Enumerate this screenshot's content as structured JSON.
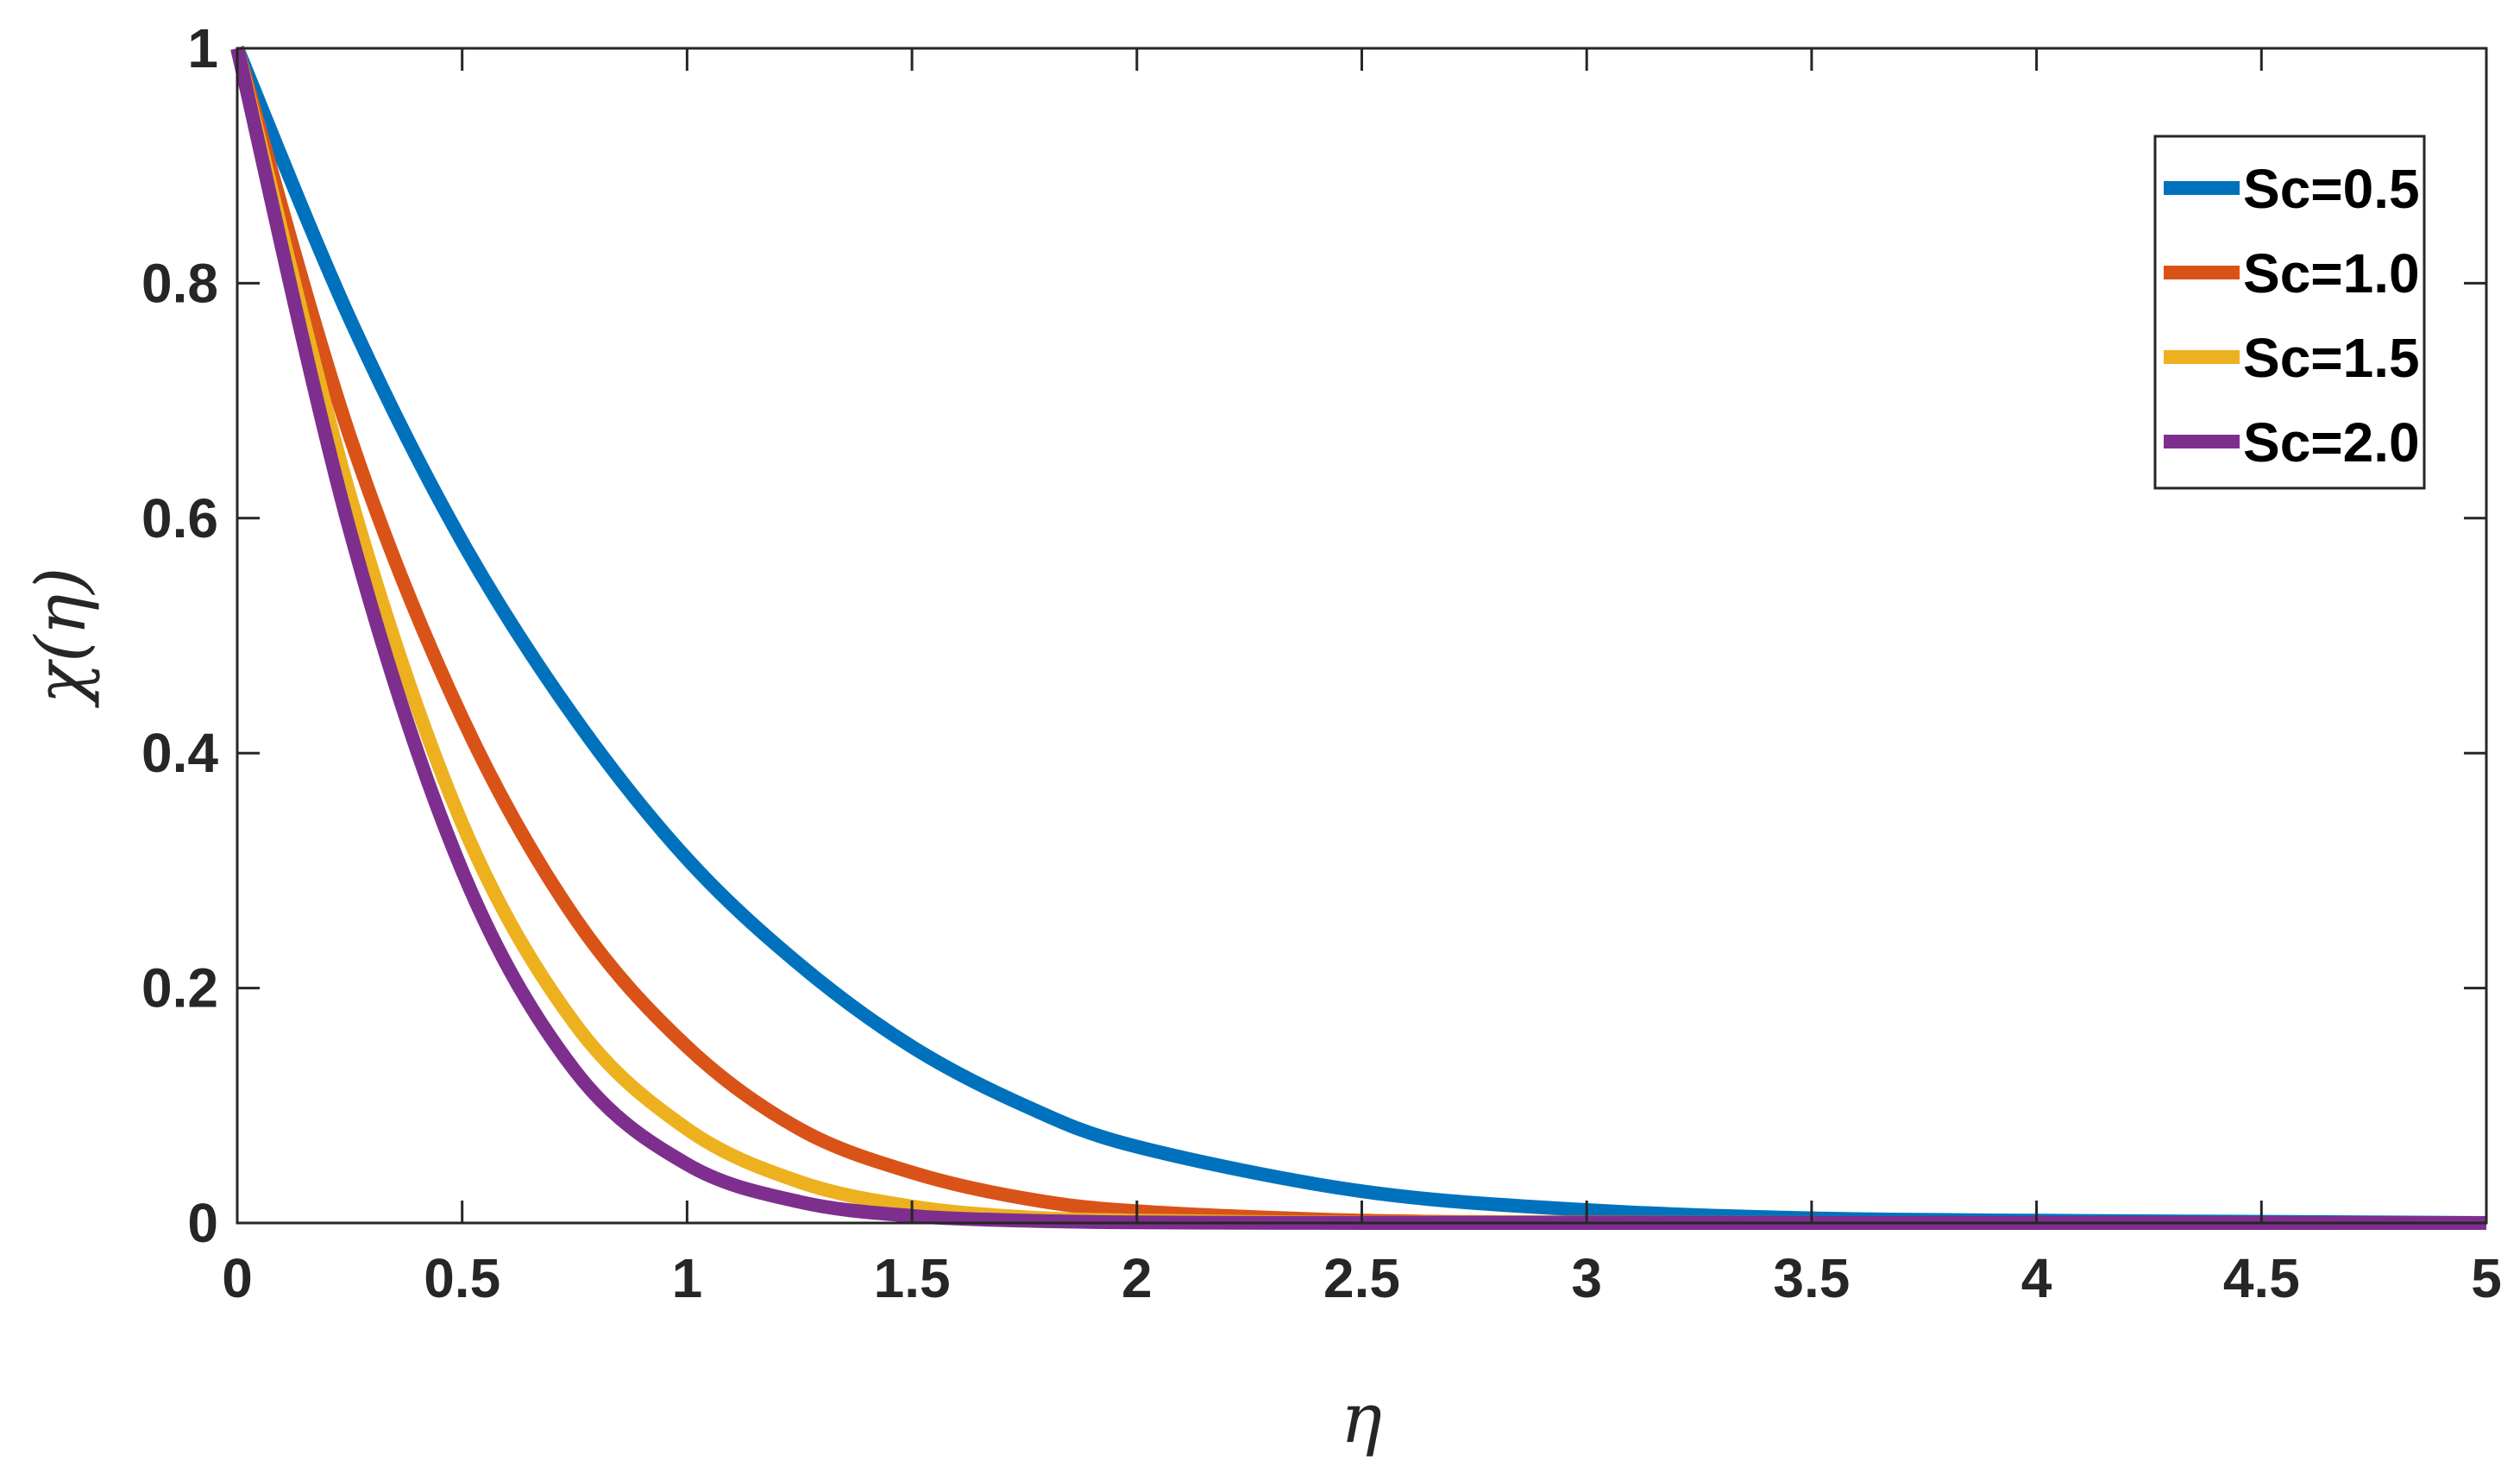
{
  "chart_data": {
    "type": "line",
    "xlabel": "η",
    "ylabel": "χ(η)",
    "xlim": [
      0,
      5
    ],
    "ylim": [
      0,
      1
    ],
    "x_ticks": [
      "0",
      "0.5",
      "1",
      "1.5",
      "2",
      "2.5",
      "3",
      "3.5",
      "4",
      "4.5",
      "5"
    ],
    "y_ticks": [
      "0",
      "0.2",
      "0.4",
      "0.6",
      "0.8",
      "1"
    ],
    "grid": false,
    "legend_position": "top-right",
    "x": [
      0,
      0.25,
      0.5,
      0.75,
      1,
      1.25,
      1.5,
      1.75,
      2,
      2.5,
      3,
      3.5,
      4,
      4.5,
      5
    ],
    "series": [
      {
        "name": "Sc=0.5",
        "color": "#0072BD",
        "values": [
          1,
          0.77,
          0.58,
          0.43,
          0.31,
          0.22,
          0.15,
          0.1,
          0.065,
          0.027,
          0.011,
          0.004,
          0.002,
          0.001,
          0
        ]
      },
      {
        "name": "Sc=1.0",
        "color": "#D95319",
        "values": [
          1,
          0.67,
          0.43,
          0.26,
          0.15,
          0.08,
          0.043,
          0.021,
          0.01,
          0.002,
          0.0005,
          0.0001,
          0,
          0,
          0
        ]
      },
      {
        "name": "Sc=1.5",
        "color": "#EDB120",
        "values": [
          1,
          0.62,
          0.34,
          0.17,
          0.08,
          0.035,
          0.014,
          0.005,
          0.002,
          0.0002,
          0,
          0,
          0,
          0,
          0
        ]
      },
      {
        "name": "Sc=2.0",
        "color": "#7E2F8E",
        "values": [
          1,
          0.59,
          0.3,
          0.13,
          0.05,
          0.018,
          0.006,
          0.002,
          0.0005,
          0,
          0,
          0,
          0,
          0,
          0
        ]
      }
    ]
  }
}
